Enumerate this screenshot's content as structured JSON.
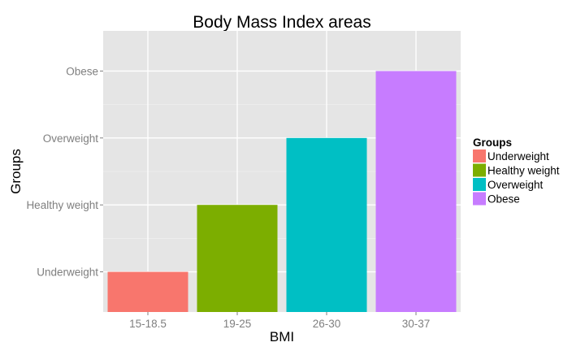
{
  "chart_data": {
    "type": "bar",
    "title": "Body Mass Index areas",
    "xlabel": "BMI",
    "ylabel": "Groups",
    "categories": [
      "15-18.5",
      "19-25",
      "26-30",
      "30-37"
    ],
    "y_levels": [
      "Underweight",
      "Healthy weight",
      "Overweight",
      "Obese"
    ],
    "values": [
      "Underweight",
      "Healthy weight",
      "Overweight",
      "Obese"
    ],
    "y_range": [
      0.4,
      4.6
    ],
    "grid": true,
    "legend": {
      "title": "Groups",
      "placement": "right",
      "entries": [
        {
          "label": "Underweight",
          "color": "#F8766D"
        },
        {
          "label": "Healthy weight",
          "color": "#7CAE00"
        },
        {
          "label": "Overweight",
          "color": "#00BFC4"
        },
        {
          "label": "Obese",
          "color": "#C77CFF"
        }
      ]
    },
    "colors": {
      "panel_bg": "#E5E5E5",
      "grid": "#FFFFFF",
      "bars": [
        "#F8766D",
        "#7CAE00",
        "#00BFC4",
        "#C77CFF"
      ]
    }
  }
}
